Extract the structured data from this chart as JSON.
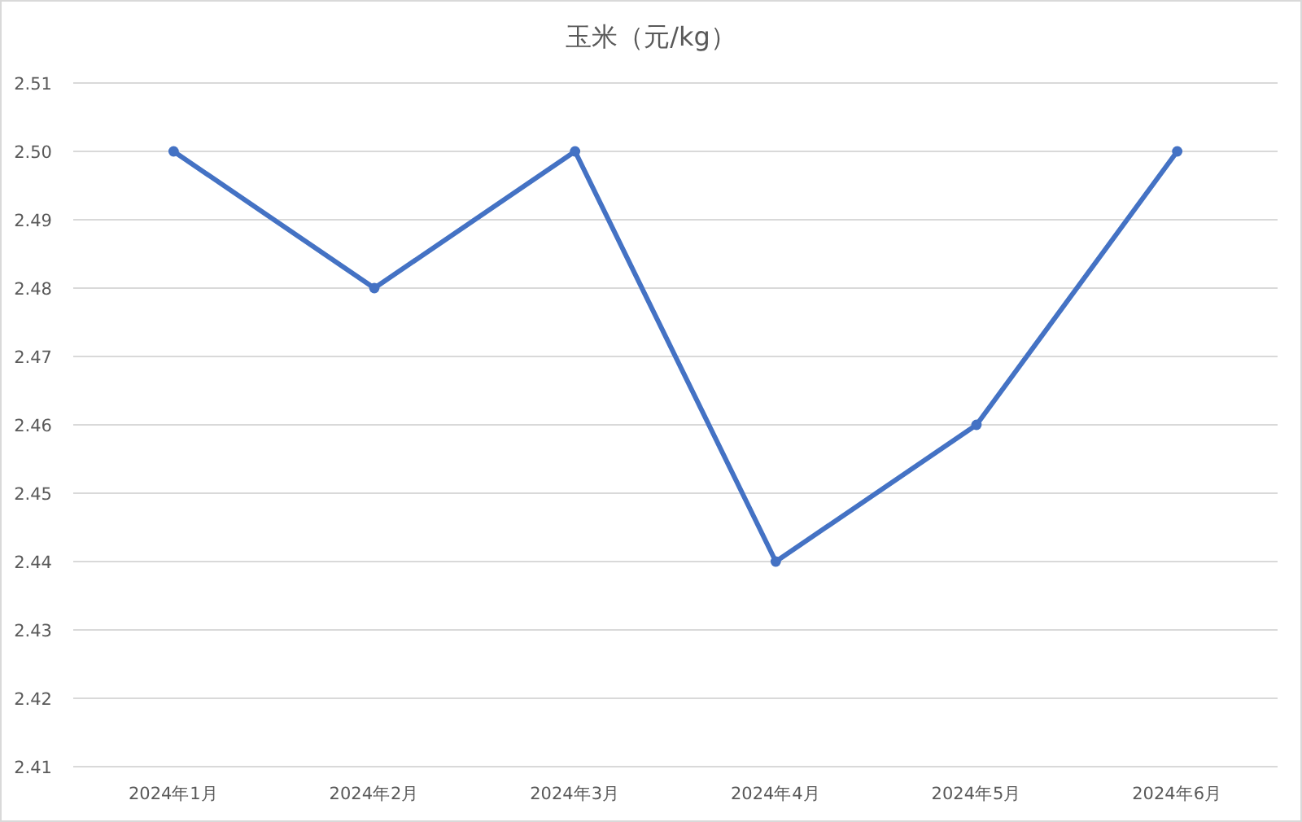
{
  "chart_data": {
    "type": "line",
    "title": "玉米（元/kg）",
    "categories": [
      "2024年1月",
      "2024年2月",
      "2024年3月",
      "2024年4月",
      "2024年5月",
      "2024年6月"
    ],
    "series": [
      {
        "color": "#4472c4",
        "values": [
          2.5,
          2.48,
          2.5,
          2.44,
          2.46,
          2.5
        ]
      }
    ],
    "ylim": [
      2.41,
      2.51
    ],
    "yticks": [
      {
        "value": 2.41,
        "label": "2.41"
      },
      {
        "value": 2.42,
        "label": "2.42"
      },
      {
        "value": 2.43,
        "label": "2.43"
      },
      {
        "value": 2.44,
        "label": "2.44"
      },
      {
        "value": 2.45,
        "label": "2.45"
      },
      {
        "value": 2.46,
        "label": "2.46"
      },
      {
        "value": 2.47,
        "label": "2.47"
      },
      {
        "value": 2.48,
        "label": "2.48"
      },
      {
        "value": 2.49,
        "label": "2.49"
      },
      {
        "value": 2.5,
        "label": "2.50"
      },
      {
        "value": 2.51,
        "label": "2.51"
      }
    ],
    "grid": "y",
    "marker": "circle",
    "line_style": "solid"
  }
}
